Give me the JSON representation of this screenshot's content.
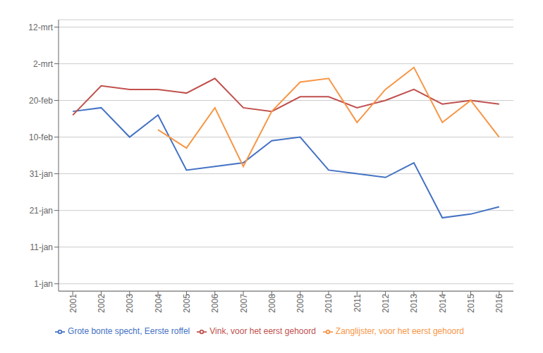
{
  "chart_data": {
    "type": "line",
    "x": [
      2001,
      2002,
      2003,
      2004,
      2005,
      2006,
      2007,
      2008,
      2009,
      2010,
      2011,
      2012,
      2013,
      2014,
      2015,
      2016
    ],
    "xlim": [
      2000.5,
      2016.5
    ],
    "xticks": [
      2001,
      2002,
      2003,
      2004,
      2005,
      2006,
      2007,
      2008,
      2009,
      2010,
      2011,
      2012,
      2013,
      2014,
      2015,
      2016
    ],
    "ylim": [
      -1,
      73
    ],
    "yticks": [
      {
        "value": 1,
        "label": "1-jan"
      },
      {
        "value": 11,
        "label": "11-jan"
      },
      {
        "value": 21,
        "label": "21-jan"
      },
      {
        "value": 31,
        "label": "31-jan"
      },
      {
        "value": 41,
        "label": "10-feb"
      },
      {
        "value": 51,
        "label": "20-feb"
      },
      {
        "value": 61,
        "label": "2-mrt"
      },
      {
        "value": 71,
        "label": "12-mrt"
      }
    ],
    "grid": "y",
    "legend": "bottom",
    "series": [
      {
        "name": "Grote bonte specht, Eerste roffel",
        "color": "#4472C4",
        "values": [
          48,
          49,
          41,
          47,
          32,
          33,
          34,
          40,
          41,
          32,
          31,
          30,
          34,
          19,
          20,
          22
        ]
      },
      {
        "name": "Vink, voor het eerst gehoord",
        "color": "#C0504D",
        "values": [
          47,
          55,
          54,
          54,
          53,
          57,
          49,
          48,
          52,
          52,
          49,
          51,
          54,
          50,
          51,
          50
        ]
      },
      {
        "name": "Zanglijster, voor het eerst gehoord",
        "color": "#F79646",
        "values": [
          null,
          null,
          null,
          43,
          38,
          49,
          33,
          48,
          56,
          57,
          45,
          54,
          60,
          45,
          51,
          41
        ]
      }
    ]
  }
}
